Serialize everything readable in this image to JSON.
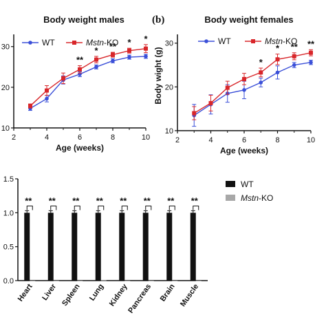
{
  "chart_data": [
    {
      "type": "line",
      "title": "Body weight males",
      "panel_label": "",
      "xlabel": "Age (weeks)",
      "ylabel": "",
      "x": [
        3,
        4,
        5,
        6,
        7,
        8,
        9,
        10
      ],
      "xlim": [
        2,
        10
      ],
      "ylim": [
        10,
        33
      ],
      "xticks": [
        "2",
        "4",
        "6",
        "8",
        "10"
      ],
      "yticks": [
        "10",
        "20",
        "30"
      ],
      "legend": "top-left",
      "series": [
        {
          "name": "WT",
          "color": "#3a4fd8",
          "marker": "circle",
          "values": [
            14.8,
            17.2,
            21.8,
            23.2,
            25.0,
            26.5,
            27.4,
            27.6
          ],
          "errors": [
            0.5,
            0.8,
            1.0,
            0.6,
            0.5,
            0.5,
            0.5,
            0.5
          ]
        },
        {
          "name": "Mstn-KO",
          "color": "#d8262a",
          "marker": "square",
          "values": [
            15.4,
            19.2,
            22.2,
            24.4,
            26.8,
            28.0,
            29.0,
            29.5
          ],
          "errors": [
            0.5,
            1.2,
            1.3,
            0.9,
            0.8,
            0.6,
            0.6,
            1.0
          ]
        }
      ],
      "significance": [
        {
          "x": 6,
          "label": "**"
        },
        {
          "x": 7,
          "label": "*"
        },
        {
          "x": 8,
          "label": "**"
        },
        {
          "x": 9,
          "label": "*"
        },
        {
          "x": 10,
          "label": "*"
        }
      ]
    },
    {
      "type": "line",
      "title": "Body weight females",
      "panel_label": "(b)",
      "xlabel": "Age (weeks)",
      "ylabel": "Body wight (g)",
      "x": [
        3,
        4,
        5,
        6,
        7,
        8,
        9,
        10
      ],
      "xlim": [
        2,
        10
      ],
      "ylim": [
        10,
        32
      ],
      "xticks": [
        "2",
        "4",
        "6",
        "8",
        "10"
      ],
      "yticks": [
        "10",
        "20",
        "30"
      ],
      "legend": "top",
      "series": [
        {
          "name": "WT",
          "color": "#3a4fd8",
          "marker": "circle",
          "values": [
            13.5,
            16.0,
            18.5,
            19.3,
            21.0,
            23.3,
            25.0,
            25.6
          ],
          "errors": [
            2.5,
            2.2,
            2.0,
            2.0,
            1.0,
            1.5,
            0.6,
            0.5
          ]
        },
        {
          "name": "Mstn-KO",
          "color": "#d8262a",
          "marker": "square",
          "values": [
            14.0,
            16.3,
            19.8,
            21.8,
            23.3,
            26.3,
            27.0,
            27.8
          ],
          "errors": [
            1.5,
            1.8,
            1.5,
            1.3,
            1.0,
            1.2,
            0.8,
            0.7
          ]
        }
      ],
      "significance": [
        {
          "x": 7,
          "label": "*"
        },
        {
          "x": 8,
          "label": "*"
        },
        {
          "x": 9,
          "label": "**"
        },
        {
          "x": 10,
          "label": "**"
        }
      ]
    },
    {
      "type": "bar",
      "title": "",
      "xlabel": "",
      "ylabel": "",
      "categories": [
        "Heart",
        "Liver",
        "Spleen",
        "Lung",
        "Kidney",
        "Pancreas",
        "Brain",
        "Muscle"
      ],
      "ylim": [
        0,
        1.5
      ],
      "yticks": [
        "0.0",
        "0.5",
        "1.0",
        "1.5"
      ],
      "legend": "right",
      "series": [
        {
          "name": "WT",
          "color": "#111111",
          "values": [
            1.0,
            1.0,
            1.0,
            1.0,
            1.0,
            1.0,
            1.0,
            1.0
          ],
          "errors": [
            0.03,
            0.03,
            0.03,
            0.03,
            0.03,
            0.03,
            0.03,
            0.03
          ]
        },
        {
          "name": "Mstn-KO",
          "color": "#a8a8a8",
          "values": [
            0.0,
            0.0,
            0.0,
            0.005,
            0.0,
            0.0,
            0.0,
            0.0
          ]
        }
      ],
      "significance": [
        "**",
        "**",
        "**",
        "**",
        "**",
        "**",
        "**",
        "**"
      ]
    }
  ]
}
